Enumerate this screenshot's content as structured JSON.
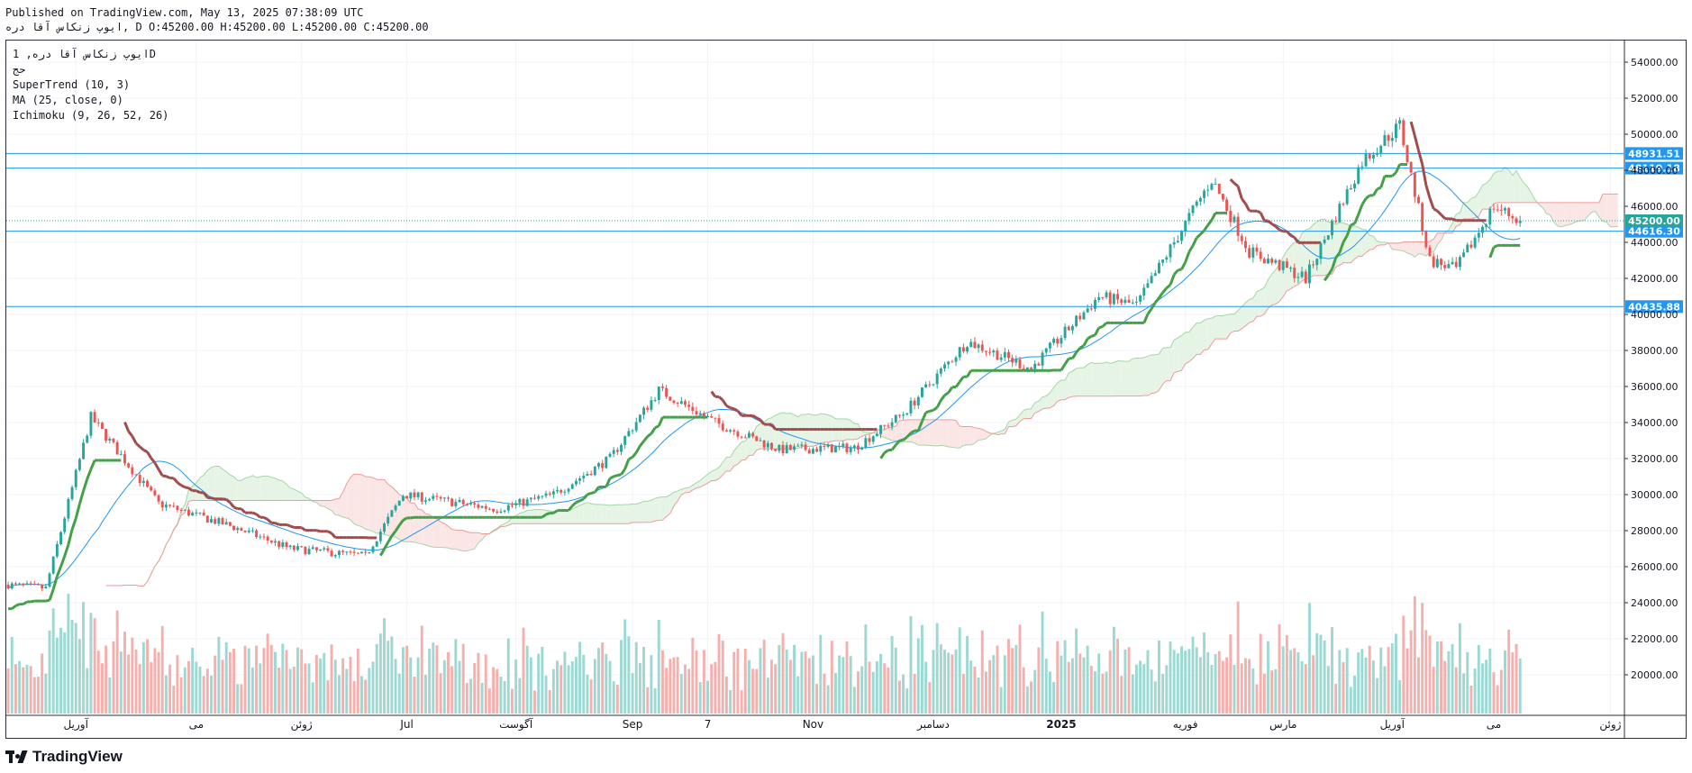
{
  "header": {
    "published": "Published on TradingView.com, May 13, 2025 07:38:09 UTC",
    "ohlc_line": "ايوپ زنکاس آقا دره, D O:45200.00 H:45200.00 L:45200.00 C:45200.00"
  },
  "legend": {
    "symbol": "ايوپ زنکاس آقا دره, 1D",
    "volume": "حج",
    "supertrend": "SuperTrend (10, 3)",
    "ma": "MA (25, close, 0)",
    "ichimoku": "Ichimoku (9, 26, 52, 26)"
  },
  "footer": {
    "brand": "TradingView"
  },
  "colors": {
    "up": "#26a69a",
    "down": "#ef5350",
    "supertrend_up": "#43a047",
    "supertrend_down": "#a14b4b",
    "ma": "#2196f3",
    "cloud_up": "#e6f4e6",
    "cloud_down": "#fbe6e6",
    "hline": "#2196f3",
    "price": "#26a69a"
  },
  "chart_data": {
    "type": "candlestick",
    "y_ticks": [
      20000,
      22000,
      24000,
      26000,
      28000,
      30000,
      32000,
      34000,
      36000,
      38000,
      40000,
      42000,
      44000,
      46000,
      48000,
      50000,
      52000,
      54000
    ],
    "y_tick_labels": [
      "20000.00",
      "22000.00",
      "24000.00",
      "26000.00",
      "28000.00",
      "30000.00",
      "32000.00",
      "34000.00",
      "36000.00",
      "38000.00",
      "40000.00",
      "42000.00",
      "44000.00",
      "46000.00",
      "48000.00",
      "50000.00",
      "52000.00",
      "54000.00"
    ],
    "ylim": [
      17800,
      55200
    ],
    "x_ticks": [
      "آوریل",
      "می",
      "ژوئن",
      "Jul",
      "آگوست",
      "Sep",
      "7",
      "Nov",
      "دسامبر",
      "2025",
      "فوریه",
      "مارس",
      "آوریل",
      "می",
      "ژوئن"
    ],
    "x_tick_bars": [
      18,
      50,
      78,
      106,
      135,
      166,
      186,
      214,
      246,
      280,
      313,
      339,
      368,
      395,
      426
    ],
    "x_total_bars": 430,
    "horizontal_levels": [
      {
        "value": 48931.51,
        "label": "48931.51"
      },
      {
        "value": 48119.18,
        "label": "48119.18"
      },
      {
        "value": 44616.3,
        "label": "44616.30"
      },
      {
        "value": 40435.88,
        "label": "40435.88"
      }
    ],
    "last_price": {
      "value": 45200.0,
      "label": "45200.00"
    },
    "trend_anchors": [
      {
        "bar": 0,
        "price": 25000
      },
      {
        "bar": 10,
        "price": 24800
      },
      {
        "bar": 22,
        "price": 34300
      },
      {
        "bar": 40,
        "price": 29500
      },
      {
        "bar": 60,
        "price": 28200
      },
      {
        "bar": 75,
        "price": 27000
      },
      {
        "bar": 95,
        "price": 26600
      },
      {
        "bar": 105,
        "price": 30000
      },
      {
        "bar": 130,
        "price": 29200
      },
      {
        "bar": 145,
        "price": 30000
      },
      {
        "bar": 160,
        "price": 32000
      },
      {
        "bar": 173,
        "price": 35800
      },
      {
        "bar": 188,
        "price": 34000
      },
      {
        "bar": 205,
        "price": 32500
      },
      {
        "bar": 225,
        "price": 32600
      },
      {
        "bar": 238,
        "price": 34500
      },
      {
        "bar": 255,
        "price": 38500
      },
      {
        "bar": 272,
        "price": 37000
      },
      {
        "bar": 290,
        "price": 41000
      },
      {
        "bar": 300,
        "price": 40500
      },
      {
        "bar": 320,
        "price": 47500
      },
      {
        "bar": 330,
        "price": 43500
      },
      {
        "bar": 345,
        "price": 42000
      },
      {
        "bar": 360,
        "price": 48500
      },
      {
        "bar": 370,
        "price": 50500
      },
      {
        "bar": 378,
        "price": 43000
      },
      {
        "bar": 385,
        "price": 42500
      },
      {
        "bar": 395,
        "price": 46000
      },
      {
        "bar": 402,
        "price": 45200
      }
    ]
  }
}
